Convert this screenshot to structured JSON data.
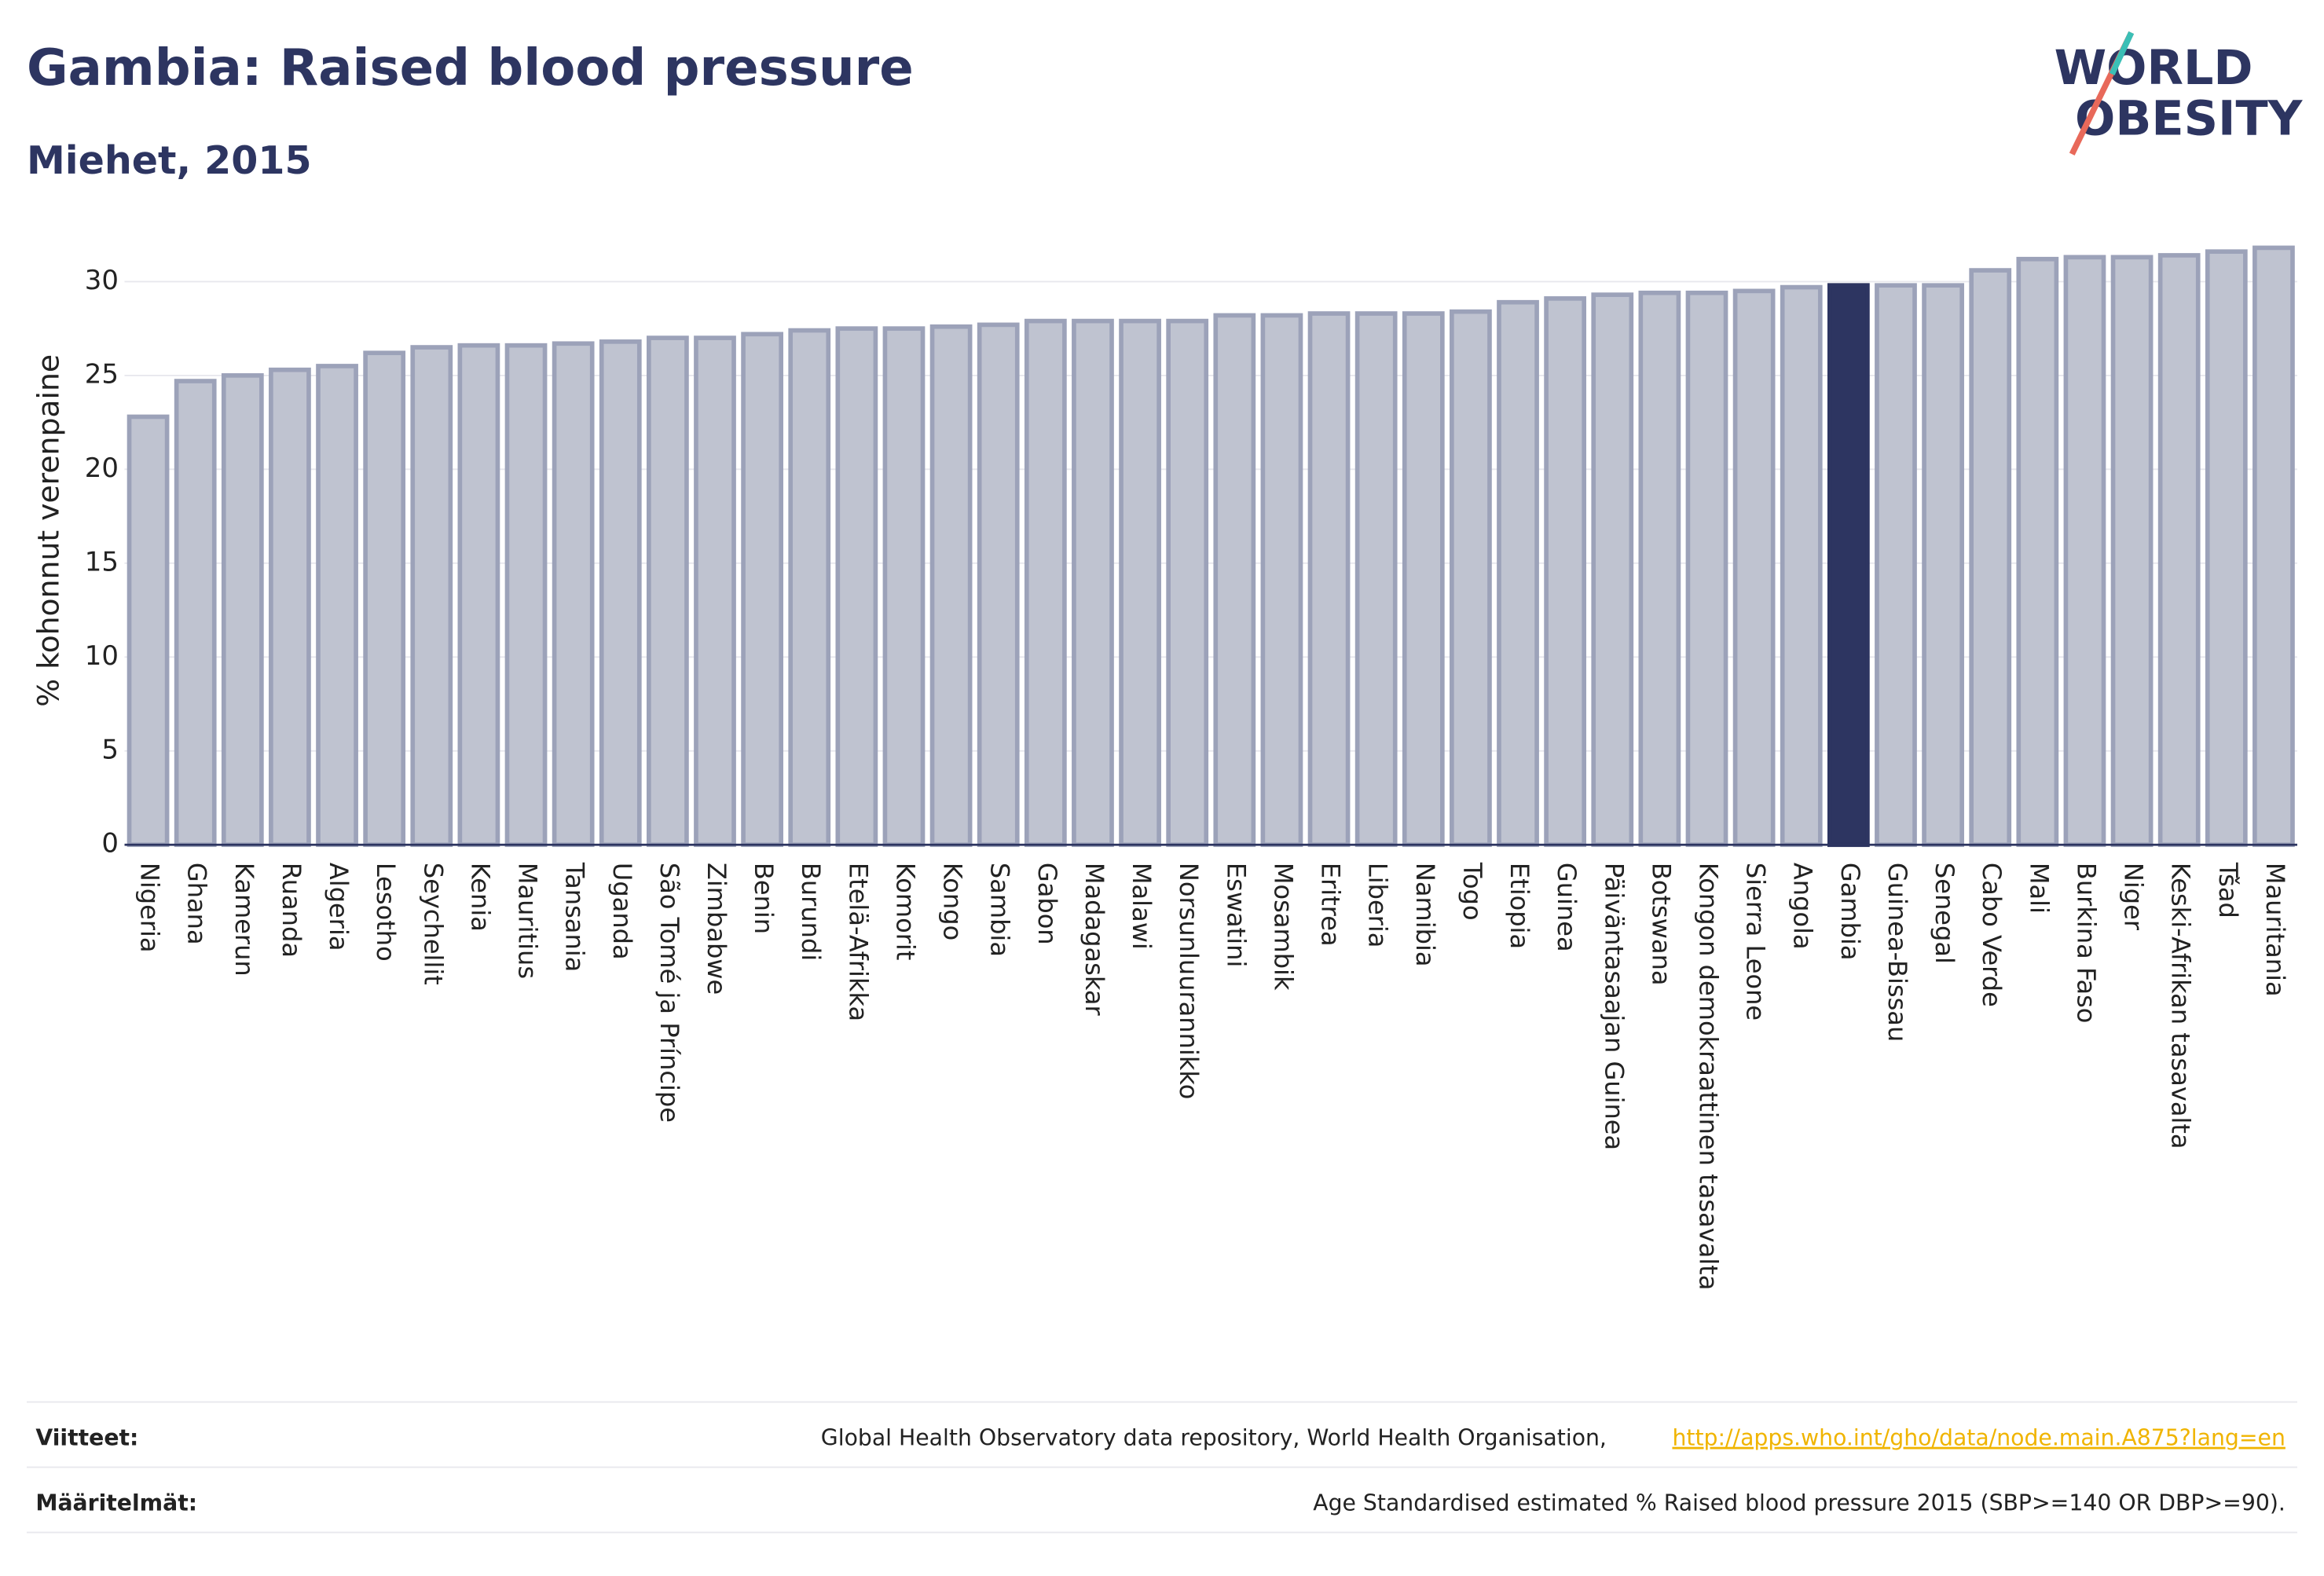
{
  "chart_data": {
    "type": "bar",
    "title": "Gambia: Raised blood pressure",
    "subtitle": "Miehet, 2015",
    "ylabel": "% kohonnut verenpaine",
    "categories": [
      "Nigeria",
      "Ghana",
      "Kamerun",
      "Ruanda",
      "Algeria",
      "Lesotho",
      "Seychellit",
      "Kenia",
      "Mauritius",
      "Tansania",
      "Uganda",
      "São Tomé ja Príncipe",
      "Zimbabwe",
      "Benin",
      "Burundi",
      "Etelä-Afrikka",
      "Komorit",
      "Kongo",
      "Sambia",
      "Gabon",
      "Madagaskar",
      "Malawi",
      "Norsunluurannikko",
      "Eswatini",
      "Mosambik",
      "Eritrea",
      "Liberia",
      "Namibia",
      "Togo",
      "Etiopia",
      "Guinea",
      "Päiväntasaajan Guinea",
      "Botswana",
      "Kongon demokraattinen tasavalta",
      "Sierra Leone",
      "Angola",
      "Gambia",
      "Guinea-Bissau",
      "Senegal",
      "Cabo Verde",
      "Mali",
      "Burkina Faso",
      "Niger",
      "Keski-Afrikan tasavalta",
      "Tšad",
      "Mauritania"
    ],
    "values": [
      22.8,
      24.7,
      25.0,
      25.3,
      25.5,
      26.2,
      26.5,
      26.6,
      26.6,
      26.7,
      26.8,
      27.0,
      27.0,
      27.2,
      27.4,
      27.5,
      27.5,
      27.6,
      27.7,
      27.9,
      27.9,
      27.9,
      27.9,
      28.2,
      28.2,
      28.3,
      28.3,
      28.3,
      28.4,
      28.9,
      29.1,
      29.3,
      29.4,
      29.4,
      29.5,
      29.7,
      29.8,
      29.8,
      29.8,
      30.6,
      31.2,
      31.3,
      31.3,
      31.4,
      31.6,
      31.8
    ],
    "color": "#bfc3d0",
    "edge_color": "#9ca2b9",
    "highlight": "Gambia",
    "highlight_color": "#2d3561",
    "ylim": [
      0,
      32.4
    ],
    "yticks": [
      0,
      5,
      10,
      15,
      20,
      25,
      30
    ],
    "grid": true
  },
  "logo": {
    "line1": "WORLD",
    "line2": "OBESITY"
  },
  "footer": {
    "sources_label": "Viitteet:",
    "sources_text": "Global Health Observatory data repository, World Health Organisation,",
    "sources_link": "http://apps.who.int/gho/data/node.main.A875?lang=en",
    "definitions_label": "Määritelmät:",
    "definitions_text": "Age Standardised estimated % Raised blood pressure 2015 (SBP>=140 OR DBP>=90)."
  }
}
